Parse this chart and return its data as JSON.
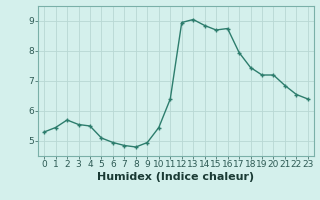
{
  "x": [
    0,
    1,
    2,
    3,
    4,
    5,
    6,
    7,
    8,
    9,
    10,
    11,
    12,
    13,
    14,
    15,
    16,
    17,
    18,
    19,
    20,
    21,
    22,
    23
  ],
  "y": [
    5.3,
    5.45,
    5.7,
    5.55,
    5.5,
    5.1,
    4.95,
    4.85,
    4.8,
    4.95,
    5.45,
    6.4,
    8.95,
    9.05,
    8.85,
    8.7,
    8.75,
    7.95,
    7.45,
    7.2,
    7.2,
    6.85,
    6.55,
    6.4
  ],
  "line_color": "#2d7d6d",
  "marker": "P",
  "marker_size": 2.5,
  "bg_color": "#d4f0ec",
  "grid_color": "#b8d8d4",
  "xlabel": "Humidex (Indice chaleur)",
  "xlabel_fontsize": 8,
  "ylim": [
    4.5,
    9.5
  ],
  "xlim": [
    -0.5,
    23.5
  ],
  "yticks": [
    5,
    6,
    7,
    8,
    9
  ],
  "xticks": [
    0,
    1,
    2,
    3,
    4,
    5,
    6,
    7,
    8,
    9,
    10,
    11,
    12,
    13,
    14,
    15,
    16,
    17,
    18,
    19,
    20,
    21,
    22,
    23
  ],
  "tick_fontsize": 6.5,
  "line_width": 1.0
}
